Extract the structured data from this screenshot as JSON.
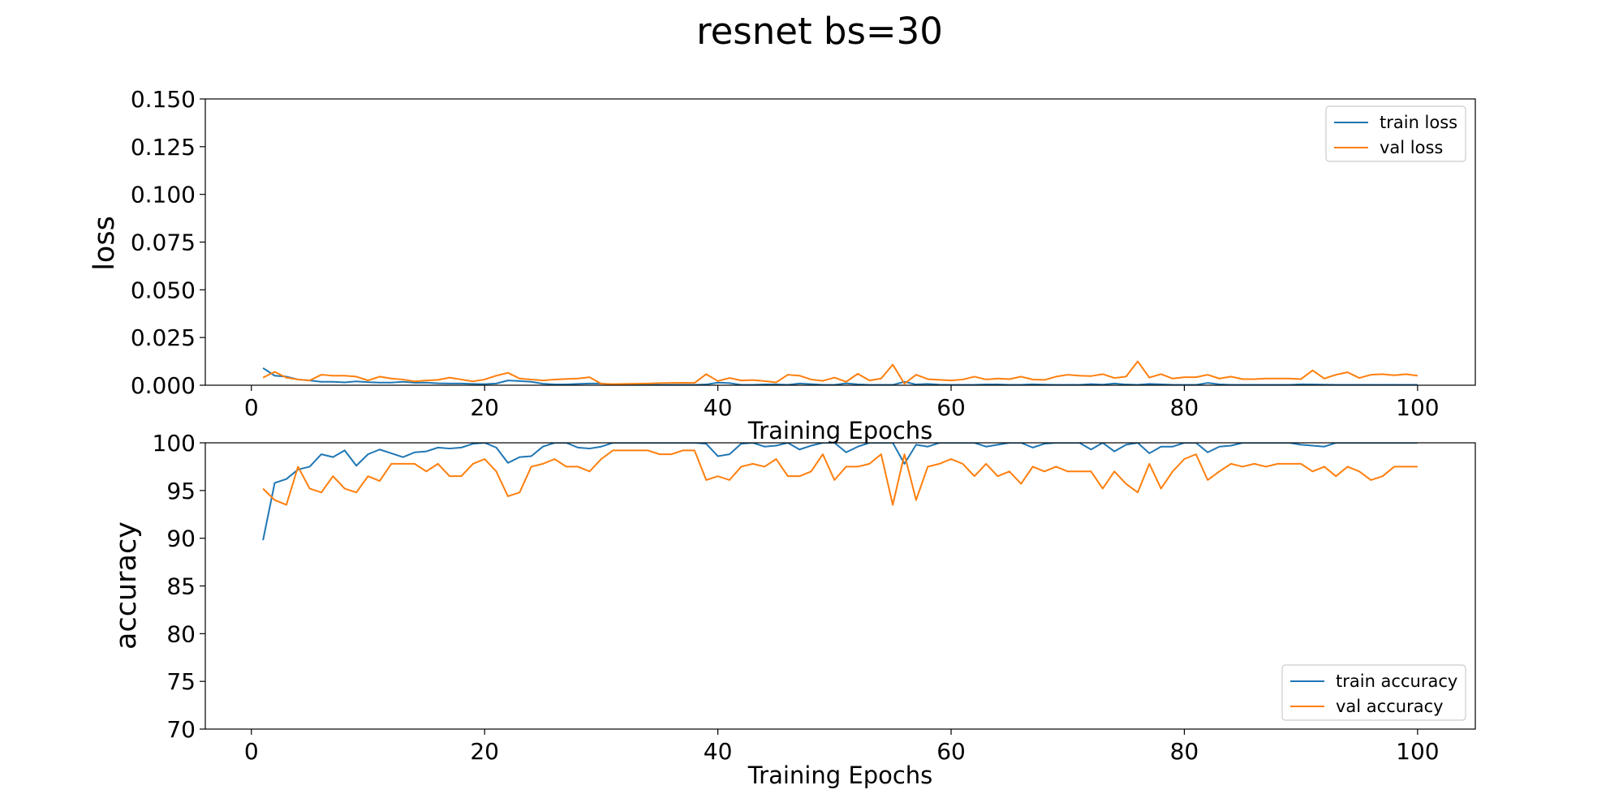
{
  "chart_data": {
    "title": "resnet bs=30",
    "colors": {
      "train": "#1f77b4",
      "val": "#ff7f0e"
    },
    "panels": [
      {
        "type": "line",
        "xlabel": "Training Epochs",
        "ylabel": "loss",
        "xlim": [
          -3.95,
          104.95
        ],
        "ylim": [
          0,
          0.15
        ],
        "xticks": [
          0,
          20,
          40,
          60,
          80,
          100
        ],
        "xtick_labels": [
          "0",
          "20",
          "40",
          "60",
          "80",
          "100"
        ],
        "yticks": [
          0,
          0.025,
          0.05,
          0.075,
          0.1,
          0.125,
          0.15
        ],
        "ytick_labels": [
          "0.000",
          "0.025",
          "0.050",
          "0.075",
          "0.100",
          "0.125",
          "0.150"
        ],
        "grid": false,
        "legend_position": "upper right",
        "series": [
          {
            "name": "train loss",
            "color": "#1f77b4",
            "x_start": 1,
            "values": [
              0.009,
              0.005,
              0.0045,
              0.003,
              0.0025,
              0.0018,
              0.0018,
              0.0015,
              0.002,
              0.0016,
              0.0014,
              0.0014,
              0.0018,
              0.0013,
              0.0014,
              0.001,
              0.0009,
              0.0009,
              0.0007,
              0.0006,
              0.0009,
              0.0025,
              0.0022,
              0.0018,
              0.0008,
              0.0004,
              0.0004,
              0.0007,
              0.0009,
              0.0009,
              0.0004,
              0.0003,
              0.0003,
              0.0002,
              0.0002,
              0.0002,
              0.0002,
              0.0002,
              0.0004,
              0.0014,
              0.0011,
              0.0002,
              0.0002,
              0.0004,
              0.0005,
              0.0002,
              0.0009,
              0.0006,
              0.0002,
              0.0002,
              0.001,
              0.0005,
              0.0002,
              0.0002,
              0.0002,
              0.0018,
              0.0004,
              0.0007,
              0.0003,
              0.0002,
              0.0002,
              0.0002,
              0.0004,
              0.0004,
              0.0002,
              0.0002,
              0.0005,
              0.0003,
              0.0002,
              0.0002,
              0.0002,
              0.0006,
              0.0003,
              0.0009,
              0.0004,
              0.0002,
              0.0007,
              0.0005,
              0.0002,
              0.0002,
              0.0002,
              0.0012,
              0.0005,
              0.0002,
              0.0002,
              0.0002,
              0.0002,
              0.0002,
              0.0002,
              0.0005,
              0.0004,
              0.0003,
              0.0002,
              0.0002,
              0.0002,
              0.0002,
              0.0002,
              0.0002,
              0.0002,
              0.0002
            ]
          },
          {
            "name": "val loss",
            "color": "#ff7f0e",
            "x_start": 1,
            "values": [
              0.004,
              0.007,
              0.004,
              0.003,
              0.0025,
              0.0055,
              0.005,
              0.005,
              0.0045,
              0.0025,
              0.0045,
              0.0035,
              0.003,
              0.002,
              0.0025,
              0.0028,
              0.004,
              0.003,
              0.002,
              0.003,
              0.005,
              0.0065,
              0.0035,
              0.003,
              0.0025,
              0.003,
              0.0033,
              0.0035,
              0.0042,
              0.0008,
              0.0006,
              0.0007,
              0.0008,
              0.0009,
              0.0011,
              0.0012,
              0.0013,
              0.0012,
              0.0058,
              0.0022,
              0.0038,
              0.0025,
              0.0027,
              0.0022,
              0.0015,
              0.0055,
              0.005,
              0.003,
              0.0023,
              0.004,
              0.0018,
              0.006,
              0.0025,
              0.0035,
              0.0108,
              0.0008,
              0.0055,
              0.0032,
              0.0028,
              0.0025,
              0.003,
              0.0045,
              0.003,
              0.0035,
              0.0032,
              0.0045,
              0.003,
              0.0028,
              0.0045,
              0.0055,
              0.005,
              0.0048,
              0.0058,
              0.0038,
              0.0045,
              0.0125,
              0.004,
              0.0058,
              0.0035,
              0.0042,
              0.0042,
              0.0055,
              0.0035,
              0.0045,
              0.0032,
              0.0032,
              0.0035,
              0.0035,
              0.0035,
              0.0032,
              0.0078,
              0.0035,
              0.0055,
              0.0068,
              0.0038,
              0.0055,
              0.0058,
              0.0052,
              0.0058,
              0.005
            ]
          }
        ]
      },
      {
        "type": "line",
        "xlabel": "Training Epochs",
        "ylabel": "accuracy",
        "xlim": [
          -3.95,
          104.95
        ],
        "ylim": [
          70,
          100
        ],
        "xticks": [
          0,
          20,
          40,
          60,
          80,
          100
        ],
        "xtick_labels": [
          "0",
          "20",
          "40",
          "60",
          "80",
          "100"
        ],
        "yticks": [
          70,
          75,
          80,
          85,
          90,
          95,
          100
        ],
        "ytick_labels": [
          "70",
          "75",
          "80",
          "85",
          "90",
          "95",
          "100"
        ],
        "grid": false,
        "legend_position": "lower right",
        "series": [
          {
            "name": "train accuracy",
            "color": "#1f77b4",
            "x_start": 1,
            "values": [
              89.8,
              95.8,
              96.2,
              97.2,
              97.5,
              98.8,
              98.5,
              99.2,
              97.6,
              98.8,
              99.3,
              98.9,
              98.5,
              99.0,
              99.1,
              99.5,
              99.4,
              99.5,
              99.9,
              100.0,
              99.5,
              97.9,
              98.5,
              98.6,
              99.6,
              100.0,
              100.0,
              99.5,
              99.4,
              99.6,
              100.0,
              100.0,
              100.0,
              100.0,
              100.0,
              100.0,
              100.0,
              100.0,
              99.9,
              98.6,
              98.8,
              99.9,
              100.0,
              99.6,
              99.7,
              100.0,
              99.3,
              99.7,
              100.0,
              100.0,
              99.0,
              99.6,
              100.0,
              100.0,
              100.0,
              97.8,
              99.8,
              99.6,
              100.0,
              100.0,
              100.0,
              100.0,
              99.6,
              99.8,
              100.0,
              100.0,
              99.5,
              99.9,
              100.0,
              100.0,
              100.0,
              99.3,
              100.0,
              99.1,
              99.8,
              100.0,
              98.9,
              99.6,
              99.6,
              100.0,
              100.0,
              99.0,
              99.6,
              99.7,
              100.0,
              100.0,
              100.0,
              100.0,
              100.0,
              99.8,
              99.7,
              99.6,
              100.0,
              100.0,
              100.0,
              100.0,
              100.0,
              100.0,
              100.0,
              100.0
            ]
          },
          {
            "name": "val accuracy",
            "color": "#ff7f0e",
            "x_start": 1,
            "values": [
              95.2,
              94.0,
              93.5,
              97.5,
              95.2,
              94.8,
              96.5,
              95.2,
              94.8,
              96.5,
              96.0,
              97.8,
              97.8,
              97.8,
              97.0,
              97.8,
              96.5,
              96.5,
              97.8,
              98.3,
              97.0,
              94.4,
              94.8,
              97.5,
              97.8,
              98.3,
              97.5,
              97.5,
              97.0,
              98.3,
              99.2,
              99.2,
              99.2,
              99.2,
              98.8,
              98.8,
              99.2,
              99.2,
              96.1,
              96.5,
              96.1,
              97.5,
              97.8,
              97.5,
              98.3,
              96.5,
              96.5,
              97.0,
              98.8,
              96.1,
              97.5,
              97.5,
              97.8,
              98.8,
              93.5,
              98.8,
              94.0,
              97.5,
              97.8,
              98.3,
              97.8,
              96.5,
              97.8,
              96.5,
              97.0,
              95.7,
              97.5,
              97.0,
              97.5,
              97.0,
              97.0,
              97.0,
              95.2,
              97.0,
              95.7,
              94.8,
              97.8,
              95.2,
              97.0,
              98.3,
              98.8,
              96.1,
              97.0,
              97.8,
              97.5,
              97.8,
              97.5,
              97.8,
              97.8,
              97.8,
              97.0,
              97.5,
              96.5,
              97.5,
              97.0,
              96.1,
              96.5,
              97.5,
              97.5,
              97.5
            ]
          }
        ]
      }
    ]
  }
}
